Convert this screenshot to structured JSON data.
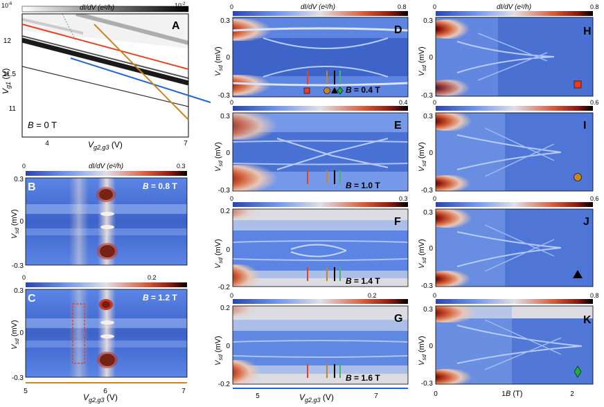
{
  "colors": {
    "map_low": "#2f4fb3",
    "map_mid": "#5d86e8",
    "map_pale": "#dcdce6",
    "map_high": "#c13a22",
    "map_max": "#000000",
    "line_red": "#e8401b",
    "line_orange": "#c9861f",
    "line_black": "#000000",
    "line_green": "#3dba6a",
    "line_blue": "#1e64dc",
    "square": "#ee3b1b",
    "circle": "#c9861f",
    "diamond": "#1fae3a"
  },
  "chart_data": [
    {
      "panel": "A",
      "type": "heatmap",
      "colorbar_label": "dI/dV (e²/h)",
      "colorbar_ticks": [
        "10⁻⁶",
        "10⁻²"
      ],
      "colorbar_scale": "log",
      "ylabel": "Vg1 (V)",
      "xlabel": "Vg2,g3 (V)",
      "xticks": [
        "4",
        "7"
      ],
      "yticks": [
        "12",
        "11.5",
        "11"
      ],
      "annotation": "B = 0 T",
      "overlay_lines": [
        {
          "color": "red",
          "from": [
            3,
            12.35
          ],
          "to": [
            7,
            11.64
          ]
        },
        {
          "color": "blue",
          "from": [
            4.1,
            11.8
          ],
          "to": [
            8,
            11.05
          ]
        },
        {
          "color": "orange",
          "from": [
            4.6,
            12.42
          ],
          "to": [
            7,
            10.88
          ]
        }
      ]
    },
    {
      "panel": "B",
      "type": "heatmap",
      "colorbar_label": "dI/dV (e²/h)",
      "colorbar_range": [
        0,
        0.3
      ],
      "ylabel": "Vsd (mV)",
      "yticks": [
        "0.3",
        "0",
        "-0.3"
      ],
      "annotation": "B = 0.8 T"
    },
    {
      "panel": "C",
      "type": "heatmap",
      "colorbar_range": [
        0,
        0.3
      ],
      "colorbar_ticks": [
        "0",
        "0.2"
      ],
      "ylabel": "Vsd (mV)",
      "yticks": [
        "0.3",
        "0",
        "-0.3"
      ],
      "xlabel": "Vg2,g3 (V)",
      "xticks": [
        "5",
        "6",
        "7"
      ],
      "annotation": "B = 1.2 T"
    },
    {
      "panel": "D",
      "type": "heatmap",
      "colorbar_label": "dI/dV (e²/h)",
      "colorbar_range": [
        0,
        0.8
      ],
      "ylabel": "Vsd (mV)",
      "yticks": [
        "0.3",
        "0",
        "-0.3"
      ],
      "annotation": "B = 0.4 T",
      "markers": [
        "square",
        "circle",
        "triangle",
        "diamond"
      ]
    },
    {
      "panel": "E",
      "type": "heatmap",
      "colorbar_range": [
        0,
        0.4
      ],
      "ylabel": "Vsd (mV)",
      "yticks": [
        "0.3",
        "0",
        "-0.3"
      ],
      "annotation": "B = 1.0 T"
    },
    {
      "panel": "F",
      "type": "heatmap",
      "colorbar_range": [
        0,
        0.3
      ],
      "ylabel": "Vsd (mV)",
      "yticks": [
        "0.2",
        "0",
        "-0.2"
      ],
      "annotation": "B = 1.4 T"
    },
    {
      "panel": "G",
      "type": "heatmap",
      "colorbar_range": [
        0,
        0.3
      ],
      "colorbar_ticks": [
        "0",
        "0.2"
      ],
      "ylabel": "Vsd (mV)",
      "yticks": [
        "0.2",
        "0",
        "-0.2"
      ],
      "xlabel": "Vg2,g3 (V)",
      "xticks": [
        "5",
        "6",
        "7"
      ],
      "annotation": "B = 1.6 T"
    },
    {
      "panel": "H",
      "type": "heatmap",
      "colorbar_label": "dI/dV (e²/h)",
      "colorbar_range": [
        0,
        0.8
      ],
      "ylabel": "Vsd (mV)",
      "yticks": [
        "0.3",
        "0",
        "-0.3"
      ],
      "marker": "square"
    },
    {
      "panel": "I",
      "type": "heatmap",
      "colorbar_range": [
        0,
        0.6
      ],
      "ylabel": "Vsd (mV)",
      "yticks": [
        "0.3",
        "0",
        "-0.3"
      ],
      "marker": "circle"
    },
    {
      "panel": "J",
      "type": "heatmap",
      "colorbar_range": [
        0,
        0.6
      ],
      "ylabel": "Vsd (mV)",
      "yticks": [
        "0.3",
        "0",
        "-0.3"
      ],
      "marker": "triangle"
    },
    {
      "panel": "K",
      "type": "heatmap",
      "colorbar_range": [
        0,
        0.8
      ],
      "ylabel": "Vsd (mV)",
      "yticks": [
        "0.3",
        "0",
        "-0.3"
      ],
      "xlabel": "B (T)",
      "xticks": [
        "0",
        "1",
        "2"
      ],
      "marker": "diamond"
    }
  ],
  "labels": {
    "cb_title": "dI/dV (e²/h)",
    "cbA_lo": "10",
    "cbA_lo_exp": "-6",
    "cbA_hi": "10",
    "cbA_hi_exp": "-2",
    "vg1": "V",
    "vg1_sub": "g1",
    "vg1_unit": " (V)",
    "vg23": "V",
    "vg23_sub": "g2,g3",
    "vg23_unit": " (V)",
    "vsd": "V",
    "vsd_sub": "sd",
    "vsd_unit": " (mV)",
    "bax": "B",
    "bax_unit": " (T)",
    "A_ann": " = 0 T",
    "B_ann": " = 0.8 T",
    "C_ann": " = 1.2 T",
    "D_ann": " = 0.4 T",
    "E_ann": " = 1.0 T",
    "F_ann": " = 1.4 T",
    "G_ann": " = 1.6 T",
    "Bsym": "B",
    "cb0": "0",
    "cbB_max": "0.3",
    "cbC_tick": "0.2",
    "cbD_max": "0.8",
    "cbE_max": "0.4",
    "cbF_max": "0.3",
    "cbG_tick": "0.2",
    "cbH_max": "0.8",
    "cbI_max": "0.6",
    "cbJ_max": "0.6",
    "cbK_max": "0.8",
    "y03": "0.3",
    "y0": "0",
    "ym03": "-0.3",
    "y02": "0.2",
    "ym02": "-0.2",
    "y12": "12",
    "y115": "11.5",
    "y11": "11",
    "x4": "4",
    "x7": "7",
    "x5": "5",
    "x6": "6",
    "x0": "0",
    "x1": "1",
    "x2": "2",
    "pA": "A",
    "pB": "B",
    "pC": "C",
    "pD": "D",
    "pE": "E",
    "pF": "F",
    "pG": "G",
    "pH": "H",
    "pI": "I",
    "pJ": "J",
    "pK": "K"
  }
}
